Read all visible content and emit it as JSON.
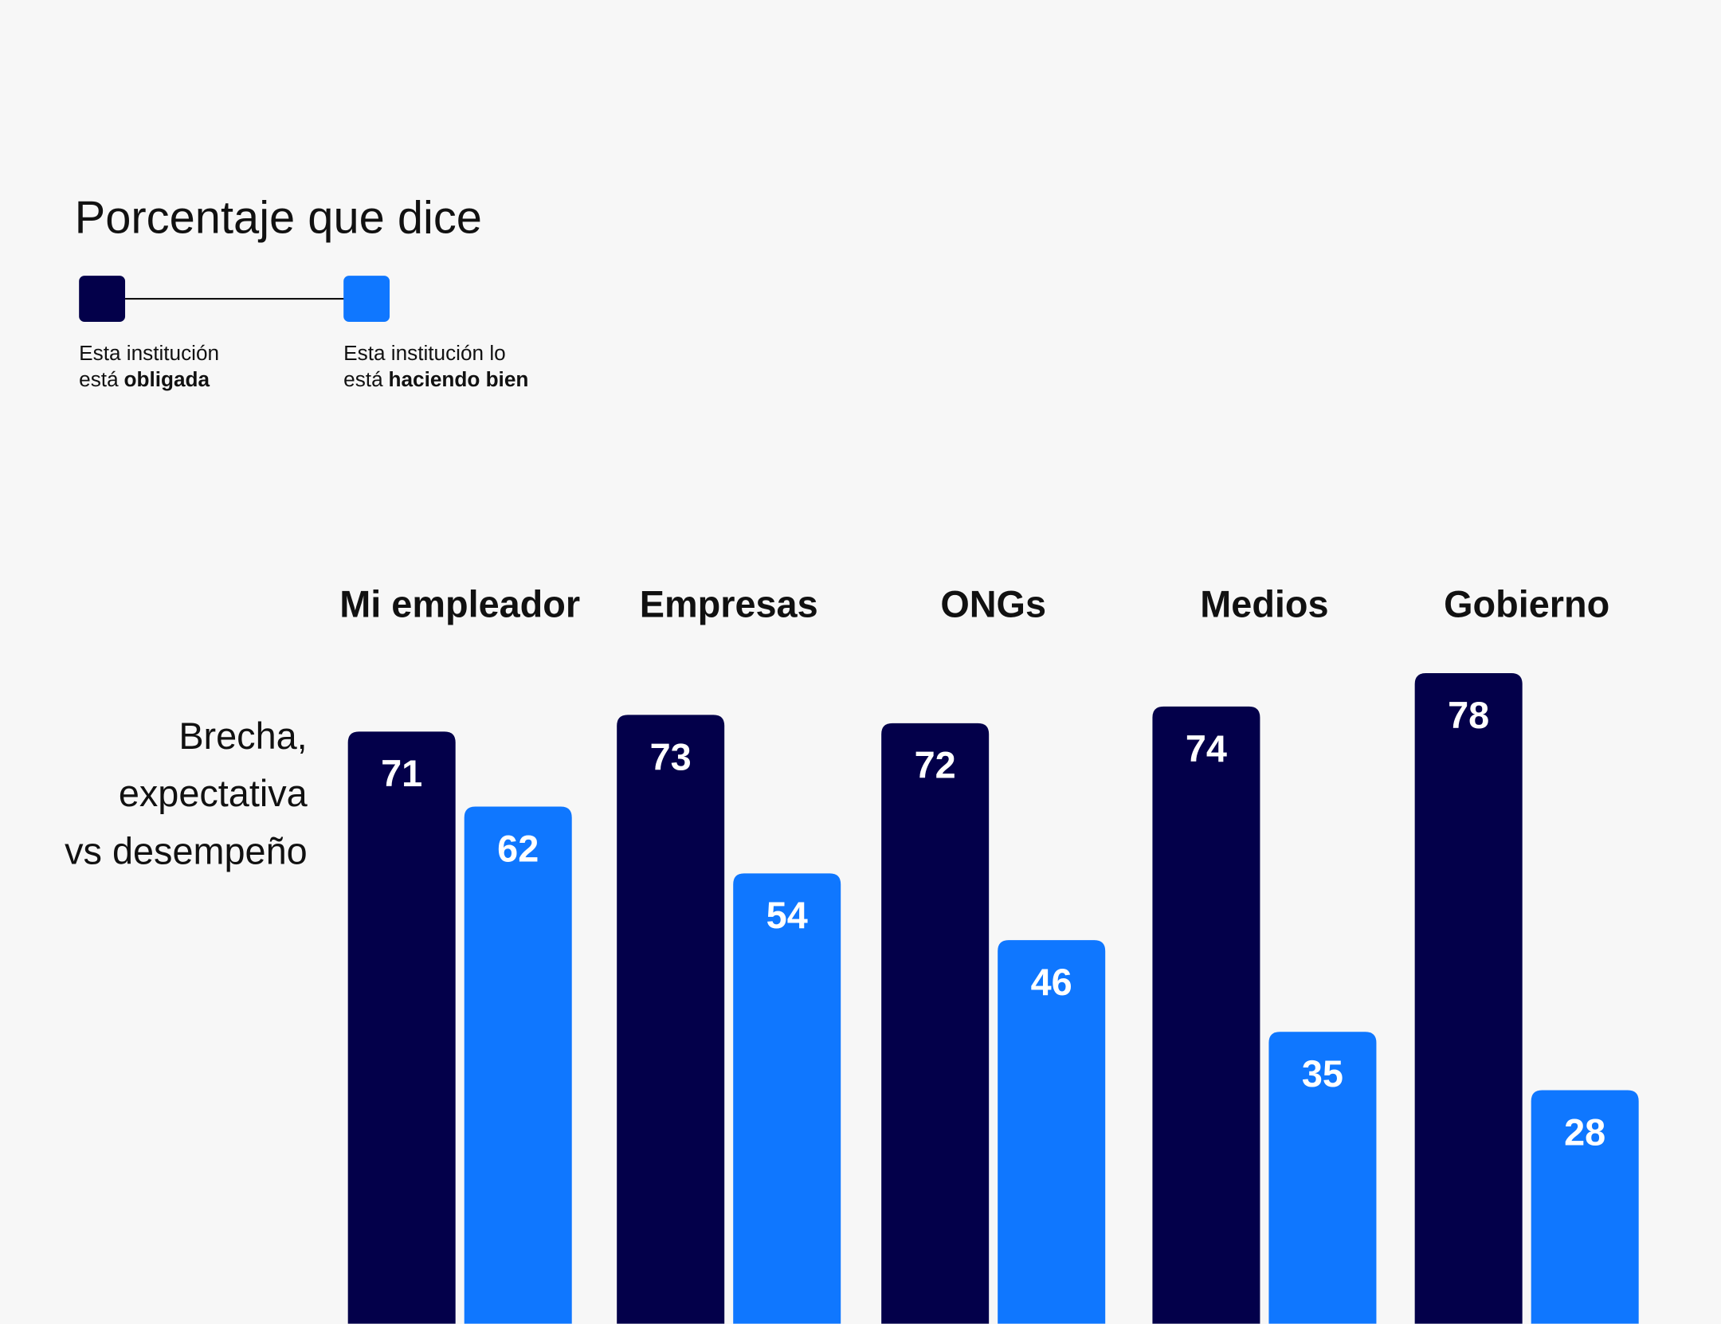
{
  "chart_data": {
    "type": "bar",
    "title": "Porcentaje que dice",
    "y_label_lines": [
      "Brecha,",
      "expectativa",
      "vs desempeño"
    ],
    "categories": [
      "Mi empleador",
      "Empresas",
      "ONGs",
      "Medios",
      "Gobierno"
    ],
    "legend": [
      {
        "text": "Esta institución",
        "prefix": "está",
        "emphasis": "obligada"
      },
      {
        "text": "Esta institución lo",
        "prefix": "está",
        "emphasis": "haciendo bien"
      }
    ],
    "series": [
      {
        "color": "#03004a",
        "values": [
          71,
          73,
          72,
          74,
          78
        ]
      },
      {
        "color": "#0f77ff",
        "values": [
          62,
          54,
          46,
          35,
          28
        ]
      }
    ]
  }
}
